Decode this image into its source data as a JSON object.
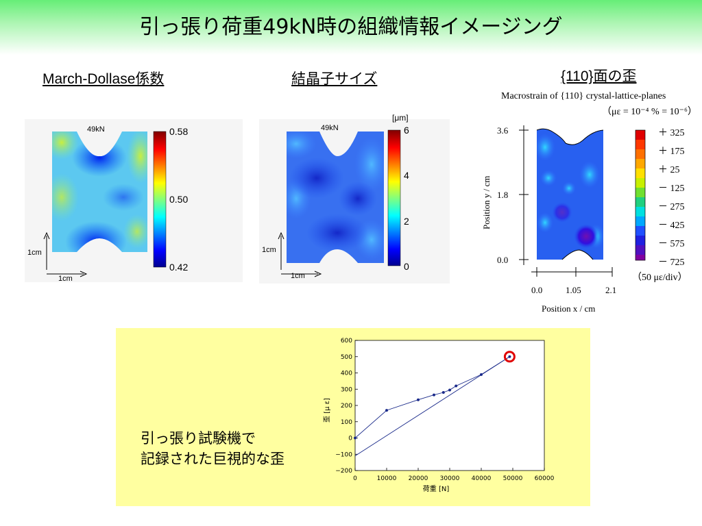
{
  "page": {
    "title": "引っ張り荷重49kN時の組織情報イメージング"
  },
  "panels": {
    "march_dollase": {
      "title": "March-Dollase係数",
      "map_label": "49kN",
      "colorbar_ticks": [
        "0.58",
        "0.50",
        "0.42"
      ],
      "scale_y": "1cm",
      "scale_x": "1cm"
    },
    "crystal_size": {
      "title": "結晶子サイズ",
      "map_label": "49kN",
      "unit": "[μm]",
      "colorbar_ticks": [
        "6",
        "4",
        "2",
        "0"
      ],
      "scale_y": "1cm",
      "scale_x": "1cm"
    },
    "strain": {
      "title": "{110}面の歪",
      "subtitle_1": "Macrostrain of {110} crystal-lattice-planes",
      "subtitle_2": "（με = 10⁻⁴ % = 10⁻⁶）",
      "ylabel": "Position y / cm",
      "xlabel": "Position x / cm",
      "yticks": [
        "3.6",
        "1.8",
        "0.0"
      ],
      "xticks": [
        "0.0",
        "1.05",
        "2.1"
      ],
      "levels": [
        "＋ 325",
        "＋ 175",
        "＋ 25",
        "－ 125",
        "－ 275",
        "－ 425",
        "－ 575",
        "－ 725"
      ],
      "level_note": "（50 με/div）"
    }
  },
  "note": {
    "line1": "引っ張り試験機で",
    "line2": "記録された巨視的な歪"
  },
  "colors": {
    "title_band": "#66ee77",
    "note_background": "#ffffa0",
    "series": "#1a2a8a",
    "highlight": "#e00000"
  },
  "chart_data": {
    "type": "line",
    "title": "",
    "xlabel": "荷重 [N]",
    "ylabel": "歪 [μ ε]",
    "xlim": [
      0,
      60000
    ],
    "ylim": [
      -200,
      600
    ],
    "xticks": [
      0,
      10000,
      20000,
      30000,
      40000,
      50000,
      60000
    ],
    "yticks": [
      -200,
      -100,
      0,
      100,
      200,
      300,
      400,
      500,
      600
    ],
    "xtick_labels": [
      "0",
      "10000",
      "20000",
      "30000",
      "40000",
      "50000",
      "60000"
    ],
    "ytick_labels": [
      "−200",
      "−100",
      "0",
      "100",
      "200",
      "300",
      "400",
      "500",
      "600"
    ],
    "series": [
      {
        "x": [
          0,
          10000,
          20000,
          25000,
          28000,
          30000,
          32000,
          40000,
          49000
        ],
        "y": [
          0,
          170,
          235,
          265,
          280,
          295,
          320,
          390,
          500
        ],
        "markers": true
      },
      {
        "x": [
          0,
          49000
        ],
        "y": [
          -110,
          500
        ],
        "markers": false
      }
    ],
    "highlight_point": {
      "x": 49000,
      "y": 500
    },
    "grid": false,
    "legend": "none"
  }
}
